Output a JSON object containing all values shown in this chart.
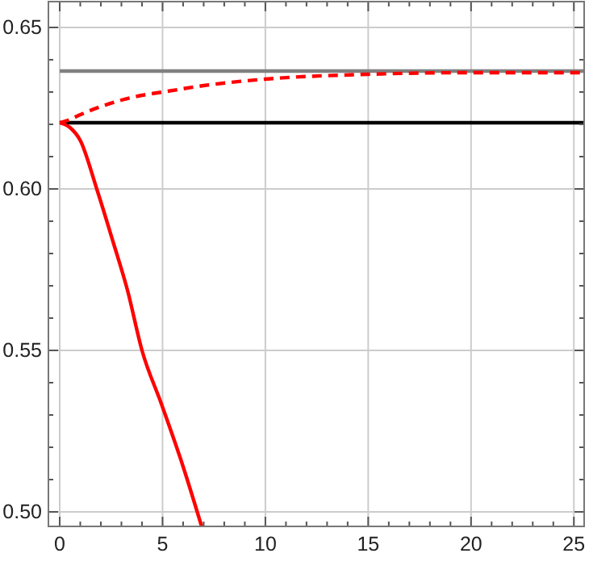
{
  "chart_data": {
    "type": "line",
    "xlim": [
      -0.55,
      25.5
    ],
    "ylim": [
      0.4955,
      0.658
    ],
    "xticks": [
      0,
      {
        "value": 1,
        "label": null
      },
      {
        "value": 2,
        "label": null
      },
      {
        "value": 3,
        "label": null
      },
      {
        "value": 4,
        "label": null
      },
      5,
      {
        "value": 6,
        "label": null
      },
      {
        "value": 7,
        "label": null
      },
      {
        "value": 8,
        "label": null
      },
      {
        "value": 9,
        "label": null
      },
      10,
      {
        "value": 11,
        "label": null
      },
      {
        "value": 12,
        "label": null
      },
      {
        "value": 13,
        "label": null
      },
      {
        "value": 14,
        "label": null
      },
      15,
      {
        "value": 16,
        "label": null
      },
      {
        "value": 17,
        "label": null
      },
      {
        "value": 18,
        "label": null
      },
      {
        "value": 19,
        "label": null
      },
      20,
      {
        "value": 21,
        "label": null
      },
      {
        "value": 22,
        "label": null
      },
      {
        "value": 23,
        "label": null
      },
      {
        "value": 24,
        "label": null
      },
      25
    ],
    "yticks": [
      {
        "value": 0.5,
        "label": "0.50"
      },
      {
        "value": 0.51,
        "label": null
      },
      {
        "value": 0.52,
        "label": null
      },
      {
        "value": 0.53,
        "label": null
      },
      {
        "value": 0.54,
        "label": null
      },
      {
        "value": 0.55,
        "label": "0.55"
      },
      {
        "value": 0.56,
        "label": null
      },
      {
        "value": 0.57,
        "label": null
      },
      {
        "value": 0.58,
        "label": null
      },
      {
        "value": 0.59,
        "label": null
      },
      {
        "value": 0.6,
        "label": "0.60"
      },
      {
        "value": 0.61,
        "label": null
      },
      {
        "value": 0.62,
        "label": null
      },
      {
        "value": 0.63,
        "label": null
      },
      {
        "value": 0.64,
        "label": null
      },
      {
        "value": 0.65,
        "label": "0.65"
      }
    ],
    "grid": true,
    "series": [
      {
        "color": "#808080",
        "x": [
          0,
          25.5
        ],
        "values": [
          0.6365,
          0.6365
        ]
      },
      {
        "color": "#000000",
        "x": [
          0,
          25.5
        ],
        "values": [
          0.6205,
          0.6205
        ]
      },
      {
        "color": "#ff0000",
        "line_style": "dashed",
        "x": [
          0,
          0.5,
          1,
          2,
          3,
          4,
          5,
          7,
          10,
          15,
          20,
          25.5
        ],
        "values": [
          0.6205,
          0.6215,
          0.623,
          0.6255,
          0.6275,
          0.629,
          0.63,
          0.632,
          0.634,
          0.6355,
          0.636,
          0.636
        ]
      },
      {
        "color": "#ff0000",
        "x": [
          0,
          0.5,
          1,
          1.8,
          2.6,
          3.3,
          4,
          4.94,
          6,
          6.9
        ],
        "values": [
          0.6205,
          0.619,
          0.615,
          0.6,
          0.5835,
          0.5685,
          0.55,
          0.5335,
          0.514,
          0.4955
        ]
      }
    ]
  }
}
